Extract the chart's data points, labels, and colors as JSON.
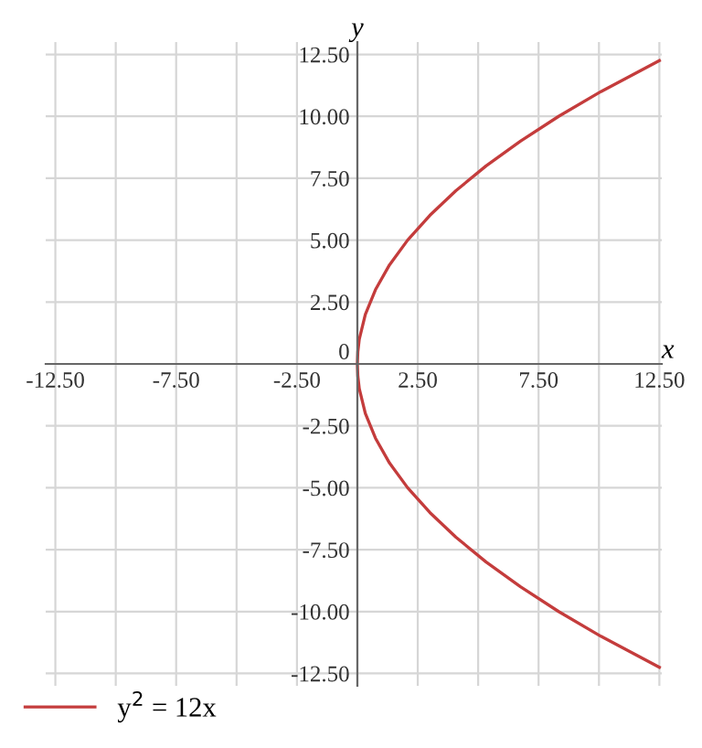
{
  "chart_data": {
    "type": "line",
    "xlabel": "x",
    "ylabel": "y",
    "series": [
      {
        "name": "y$^{2}$ = 12x",
        "color": "#c43c3c",
        "x": [
          12.5,
          10.08,
          8.33,
          6.75,
          5.33,
          4.08,
          3.0,
          2.08,
          1.33,
          0.75,
          0.33,
          0.08,
          0.02,
          0,
          0.02,
          0.08,
          0.33,
          0.75,
          1.33,
          2.08,
          3.0,
          4.08,
          5.33,
          6.75,
          8.33,
          10.08,
          12.5
        ],
        "values": [
          -12.25,
          -11,
          -10,
          -9,
          -8,
          -7,
          -6,
          -5,
          -4,
          -3,
          -2,
          -1,
          -0.5,
          0,
          0.5,
          1,
          2,
          3,
          4,
          5,
          6,
          7,
          8,
          9,
          10,
          11,
          12.25
        ]
      }
    ],
    "xlim": [
      -12.9,
      12.6
    ],
    "ylim": [
      -13,
      13
    ],
    "xticks": [
      {
        "value": -12.5,
        "label": "-12.50"
      },
      {
        "value": -10,
        "label": null
      },
      {
        "value": -7.5,
        "label": "-7.50"
      },
      {
        "value": -5,
        "label": null
      },
      {
        "value": -2.5,
        "label": "-2.50"
      },
      {
        "value": 0,
        "label": null
      },
      {
        "value": 2.5,
        "label": "2.50"
      },
      {
        "value": 5,
        "label": null
      },
      {
        "value": 7.5,
        "label": "7.50"
      },
      {
        "value": 10,
        "label": null
      },
      {
        "value": 12.5,
        "label": "12.50"
      }
    ],
    "yticks": [
      {
        "value": -12.5,
        "label": "-12.50"
      },
      {
        "value": -10,
        "label": "-10.00"
      },
      {
        "value": -7.5,
        "label": "-7.50"
      },
      {
        "value": -5,
        "label": "-5.00"
      },
      {
        "value": -2.5,
        "label": "-2.50"
      },
      0,
      {
        "value": 2.5,
        "label": "2.50"
      },
      {
        "value": 5,
        "label": "5.00"
      },
      {
        "value": 7.5,
        "label": "7.50"
      },
      {
        "value": 10,
        "label": "10.00"
      },
      {
        "value": 12.5,
        "label": "12.50"
      }
    ],
    "grid": true,
    "legend": "bottom left",
    "marker": "none",
    "line_style": "solid"
  }
}
